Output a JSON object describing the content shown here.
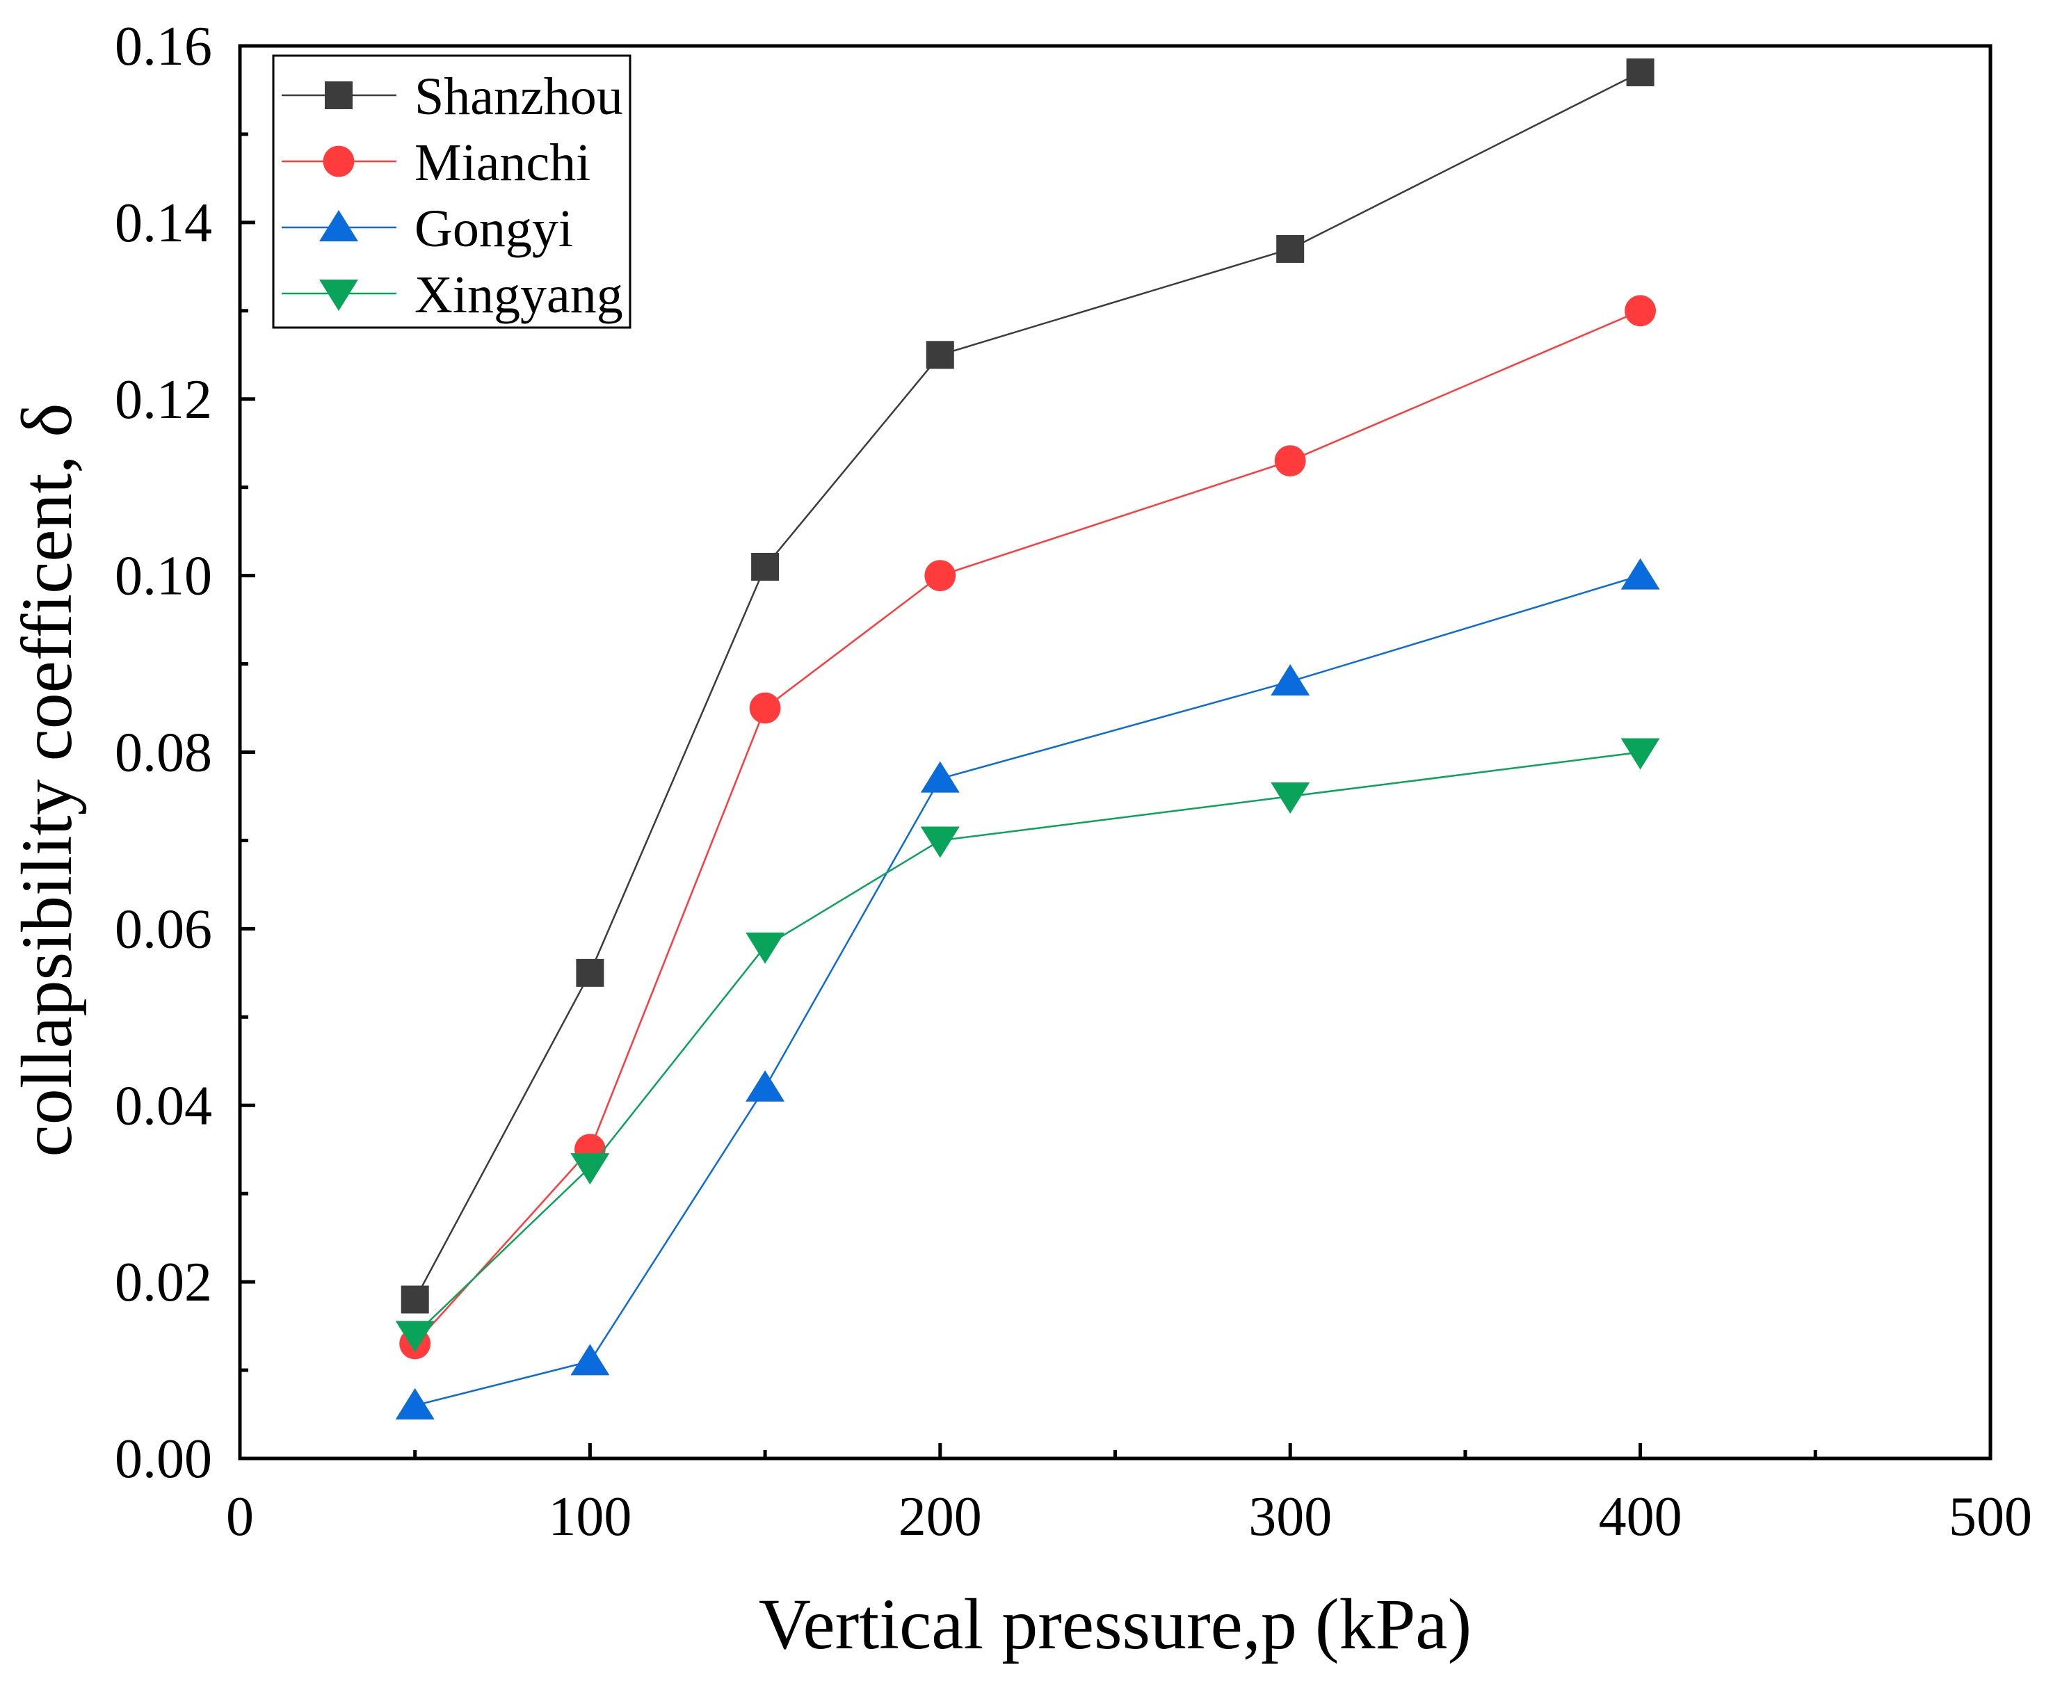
{
  "chart_data": {
    "type": "line",
    "title": "",
    "xlabel": "Vertical pressure,p (kPa)",
    "ylabel": "collapsibility coefficent, δ",
    "xlim": [
      0,
      500
    ],
    "ylim": [
      0,
      0.16
    ],
    "x_ticks": [
      0,
      100,
      200,
      300,
      400,
      500
    ],
    "x_tick_labels": [
      "0",
      "100",
      "200",
      "300",
      "400",
      "500"
    ],
    "y_ticks": [
      0,
      0.02,
      0.04,
      0.06,
      0.08,
      0.1,
      0.12,
      0.14,
      0.16
    ],
    "y_tick_labels": [
      "0.00",
      "0.02",
      "0.04",
      "0.06",
      "0.08",
      "0.10",
      "0.12",
      "0.14",
      "0.16"
    ],
    "grid": false,
    "legend_position": "top-left",
    "series": [
      {
        "name": "Shanzhou",
        "color": "#3c3c3c",
        "marker": "square",
        "x": [
          50,
          100,
          150,
          200,
          300,
          400
        ],
        "values": [
          0.018,
          0.055,
          0.101,
          0.125,
          0.137,
          0.157
        ]
      },
      {
        "name": "Mianchi",
        "color": "#ff3b3b",
        "marker": "circle",
        "x": [
          50,
          100,
          150,
          200,
          300,
          400
        ],
        "values": [
          0.013,
          0.035,
          0.085,
          0.1,
          0.113,
          0.13
        ]
      },
      {
        "name": "Gongyi",
        "color": "#0a6cdc",
        "marker": "triangle-up",
        "x": [
          50,
          100,
          150,
          200,
          300,
          400
        ],
        "values": [
          0.006,
          0.011,
          0.042,
          0.077,
          0.088,
          0.1
        ]
      },
      {
        "name": "Xingyang",
        "color": "#0aa35a",
        "marker": "triangle-down",
        "x": [
          50,
          100,
          150,
          200,
          300,
          400
        ],
        "values": [
          0.014,
          0.033,
          0.058,
          0.07,
          0.075,
          0.08
        ]
      }
    ]
  }
}
